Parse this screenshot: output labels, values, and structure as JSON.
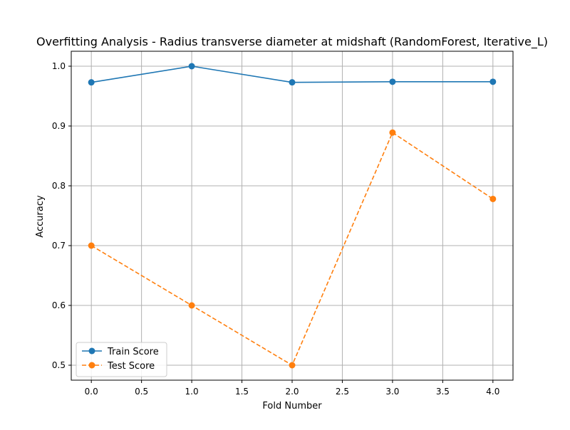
{
  "chart_data": {
    "type": "line",
    "title": "Overfitting Analysis - Radius transverse diameter at midshaft (RandomForest, Iterative_L)",
    "xlabel": "Fold Number",
    "ylabel": "Accuracy",
    "x": [
      0,
      1,
      2,
      3,
      4
    ],
    "xlim": [
      -0.2,
      4.2
    ],
    "ylim": [
      0.475,
      1.025
    ],
    "xticks": [
      0.0,
      0.5,
      1.0,
      1.5,
      2.0,
      2.5,
      3.0,
      3.5,
      4.0
    ],
    "xtick_labels": [
      "0.0",
      "0.5",
      "1.0",
      "1.5",
      "2.0",
      "2.5",
      "3.0",
      "3.5",
      "4.0"
    ],
    "yticks": [
      0.5,
      0.6,
      0.7,
      0.8,
      0.9,
      1.0
    ],
    "ytick_labels": [
      "0.5",
      "0.6",
      "0.7",
      "0.8",
      "0.9",
      "1.0"
    ],
    "grid": true,
    "legend_position": "lower-left",
    "series": [
      {
        "name": "Train Score",
        "values": [
          0.973,
          1.0,
          0.973,
          0.974,
          0.974
        ],
        "color": "#1f77b4",
        "line_style": "solid",
        "marker": "circle"
      },
      {
        "name": "Test Score",
        "values": [
          0.7,
          0.6,
          0.5,
          0.889,
          0.778
        ],
        "color": "#ff7f0e",
        "line_style": "dashed",
        "marker": "circle"
      }
    ]
  }
}
